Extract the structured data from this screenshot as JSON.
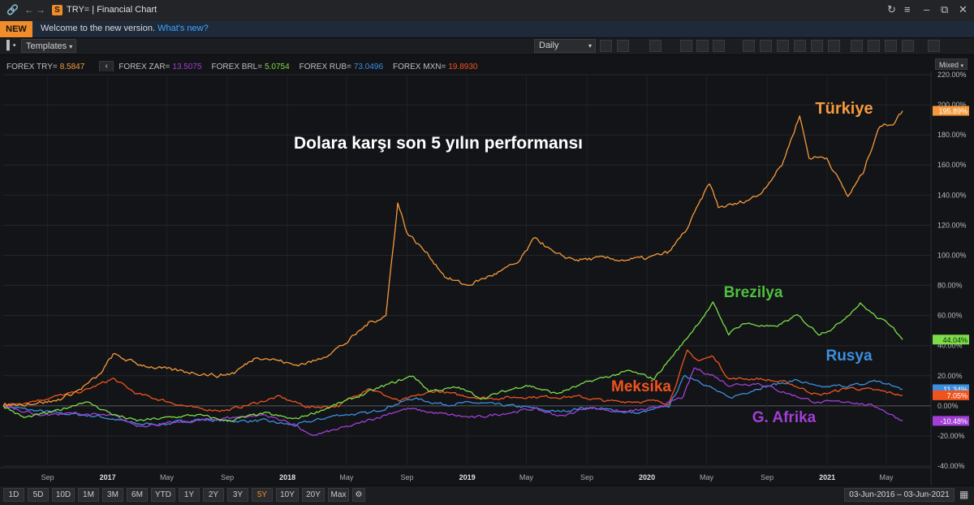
{
  "window": {
    "title": "TRY= | Financial Chart",
    "app_badge": "S"
  },
  "banner": {
    "tag": "NEW",
    "message": "Welcome to the new version.",
    "link": "What's new?"
  },
  "toolbar": {
    "templates_label": "Templates",
    "interval_label": "Daily"
  },
  "legend": [
    {
      "key": "FOREX TRY=",
      "value": "8.5847",
      "color": "#f59a3c"
    },
    {
      "key": "FOREX ZAR=",
      "value": "13.5075",
      "color": "#a23fd6"
    },
    {
      "key": "FOREX BRL=",
      "value": "5.0754",
      "color": "#7ddc4a"
    },
    {
      "key": "FOREX RUB=",
      "value": "73.0496",
      "color": "#3c8fe0"
    },
    {
      "key": "FOREX MXN=",
      "value": "19.8930",
      "color": "#f0541e"
    }
  ],
  "scale_mode": "Mixed",
  "range_buttons": [
    "1D",
    "5D",
    "10D",
    "1M",
    "3M",
    "6M",
    "YTD",
    "1Y",
    "2Y",
    "3Y",
    "5Y",
    "10Y",
    "20Y",
    "Max"
  ],
  "active_range": "5Y",
  "date_range": {
    "from": "03-Jun-2016",
    "to": "03-Jun-2021"
  },
  "chart_data": {
    "type": "line",
    "title": "Dolara karşı son 5 yılın performansı",
    "xlabel": "",
    "ylabel": "",
    "ylim": [
      -40,
      220
    ],
    "y_ticks": [
      "220.00%",
      "200.00%",
      "180.00%",
      "160.00%",
      "140.00%",
      "120.00%",
      "100.00%",
      "80.00%",
      "60.00%",
      "40.00%",
      "20.00%",
      "0.00%",
      "-20.00%",
      "-40.00%"
    ],
    "x_ticks": [
      "Sep",
      "2017",
      "May",
      "Sep",
      "2018",
      "May",
      "Sep",
      "2019",
      "May",
      "Sep",
      "2020",
      "May",
      "Sep",
      "2021",
      "May"
    ],
    "x_range": [
      "2016-06-03",
      "2021-06-03"
    ],
    "grid": true,
    "series": [
      {
        "name": "Türkiye",
        "color": "#f59a3c",
        "last_label": "195.89%",
        "points": [
          [
            "2016-06-03",
            0
          ],
          [
            "2016-08-01",
            2
          ],
          [
            "2016-09-15",
            3
          ],
          [
            "2016-11-01",
            10
          ],
          [
            "2016-12-15",
            20
          ],
          [
            "2017-01-12",
            34
          ],
          [
            "2017-03-01",
            28
          ],
          [
            "2017-05-01",
            24
          ],
          [
            "2017-07-01",
            22
          ],
          [
            "2017-08-15",
            20
          ],
          [
            "2017-09-15",
            22
          ],
          [
            "2017-11-01",
            33
          ],
          [
            "2017-12-15",
            30
          ],
          [
            "2018-01-15",
            27
          ],
          [
            "2018-03-01",
            30
          ],
          [
            "2018-05-01",
            42
          ],
          [
            "2018-06-15",
            55
          ],
          [
            "2018-07-20",
            60
          ],
          [
            "2018-08-13",
            135
          ],
          [
            "2018-09-01",
            115
          ],
          [
            "2018-10-15",
            100
          ],
          [
            "2018-11-20",
            85
          ],
          [
            "2019-01-01",
            80
          ],
          [
            "2019-03-01",
            88
          ],
          [
            "2019-04-15",
            95
          ],
          [
            "2019-05-20",
            112
          ],
          [
            "2019-07-01",
            100
          ],
          [
            "2019-08-15",
            97
          ],
          [
            "2019-10-01",
            98
          ],
          [
            "2019-11-15",
            97
          ],
          [
            "2020-01-01",
            98
          ],
          [
            "2020-02-15",
            102
          ],
          [
            "2020-03-23",
            118
          ],
          [
            "2020-05-07",
            148
          ],
          [
            "2020-05-25",
            132
          ],
          [
            "2020-07-01",
            134
          ],
          [
            "2020-08-15",
            140
          ],
          [
            "2020-10-01",
            160
          ],
          [
            "2020-11-06",
            193
          ],
          [
            "2020-11-25",
            165
          ],
          [
            "2020-12-31",
            165
          ],
          [
            "2021-02-12",
            139
          ],
          [
            "2021-03-15",
            155
          ],
          [
            "2021-04-15",
            185
          ],
          [
            "2021-05-15",
            188
          ],
          [
            "2021-06-03",
            196
          ]
        ]
      },
      {
        "name": "Brezilya",
        "color": "#7ddc4a",
        "last_label": "44.04%",
        "points": [
          [
            "2016-06-03",
            0
          ],
          [
            "2016-07-15",
            -8
          ],
          [
            "2016-09-15",
            -4
          ],
          [
            "2016-11-15",
            3
          ],
          [
            "2017-01-15",
            -6
          ],
          [
            "2017-03-01",
            -10
          ],
          [
            "2017-05-01",
            -8
          ],
          [
            "2017-07-01",
            -6
          ],
          [
            "2017-09-01",
            -10
          ],
          [
            "2017-11-15",
            -5
          ],
          [
            "2018-01-15",
            -9
          ],
          [
            "2018-03-01",
            -4
          ],
          [
            "2018-05-15",
            5
          ],
          [
            "2018-07-15",
            13
          ],
          [
            "2018-09-13",
            20
          ],
          [
            "2018-10-15",
            10
          ],
          [
            "2018-12-15",
            12
          ],
          [
            "2019-02-01",
            5
          ],
          [
            "2019-05-01",
            14
          ],
          [
            "2019-07-01",
            8
          ],
          [
            "2019-09-15",
            17
          ],
          [
            "2019-11-26",
            23
          ],
          [
            "2020-01-15",
            18
          ],
          [
            "2020-03-15",
            42
          ],
          [
            "2020-05-14",
            68
          ],
          [
            "2020-06-15",
            48
          ],
          [
            "2020-07-15",
            55
          ],
          [
            "2020-09-15",
            52
          ],
          [
            "2020-11-01",
            60
          ],
          [
            "2020-12-15",
            48
          ],
          [
            "2021-01-15",
            52
          ],
          [
            "2021-03-09",
            68
          ],
          [
            "2021-04-15",
            58
          ],
          [
            "2021-05-15",
            53
          ],
          [
            "2021-06-03",
            44
          ]
        ]
      },
      {
        "name": "Rusya",
        "color": "#3c8fe0",
        "last_label": "11.34%",
        "points": [
          [
            "2016-06-03",
            0
          ],
          [
            "2016-08-01",
            -3
          ],
          [
            "2016-10-01",
            -5
          ],
          [
            "2016-12-15",
            -7
          ],
          [
            "2017-03-01",
            -12
          ],
          [
            "2017-05-01",
            -12
          ],
          [
            "2017-07-01",
            -9
          ],
          [
            "2017-09-01",
            -10
          ],
          [
            "2017-11-15",
            -10
          ],
          [
            "2018-01-15",
            -13
          ],
          [
            "2018-04-15",
            -6
          ],
          [
            "2018-06-15",
            -5
          ],
          [
            "2018-09-13",
            5
          ],
          [
            "2018-11-15",
            1
          ],
          [
            "2019-01-15",
            2
          ],
          [
            "2019-05-01",
            -1
          ],
          [
            "2019-07-01",
            -4
          ],
          [
            "2019-09-01",
            -1
          ],
          [
            "2019-12-15",
            -5
          ],
          [
            "2020-02-15",
            0
          ],
          [
            "2020-03-18",
            20
          ],
          [
            "2020-04-15",
            17
          ],
          [
            "2020-06-15",
            5
          ],
          [
            "2020-08-15",
            12
          ],
          [
            "2020-09-30",
            15
          ],
          [
            "2020-11-01",
            17
          ],
          [
            "2020-12-15",
            12
          ],
          [
            "2021-01-15",
            13
          ],
          [
            "2021-03-15",
            14
          ],
          [
            "2021-04-07",
            17
          ],
          [
            "2021-06-03",
            11
          ]
        ]
      },
      {
        "name": "Meksika",
        "color": "#f0541e",
        "last_label": "7.05%",
        "points": [
          [
            "2016-06-03",
            0
          ],
          [
            "2016-08-15",
            4
          ],
          [
            "2016-11-15",
            10
          ],
          [
            "2017-01-12",
            18
          ],
          [
            "2017-03-01",
            8
          ],
          [
            "2017-05-01",
            3
          ],
          [
            "2017-07-01",
            -2
          ],
          [
            "2017-09-01",
            -3
          ],
          [
            "2017-12-15",
            6
          ],
          [
            "2018-02-15",
            -1
          ],
          [
            "2018-04-15",
            0
          ],
          [
            "2018-06-14",
            12
          ],
          [
            "2018-08-15",
            3
          ],
          [
            "2018-10-30",
            10
          ],
          [
            "2018-12-15",
            7
          ],
          [
            "2019-02-15",
            5
          ],
          [
            "2019-05-01",
            6
          ],
          [
            "2019-08-15",
            6
          ],
          [
            "2019-10-15",
            3
          ],
          [
            "2020-01-15",
            3
          ],
          [
            "2020-02-15",
            2
          ],
          [
            "2020-03-23",
            36
          ],
          [
            "2020-04-15",
            30
          ],
          [
            "2020-05-15",
            33
          ],
          [
            "2020-06-15",
            18
          ],
          [
            "2020-08-15",
            18
          ],
          [
            "2020-10-15",
            15
          ],
          [
            "2020-12-15",
            7
          ],
          [
            "2021-02-15",
            12
          ],
          [
            "2021-04-15",
            10
          ],
          [
            "2021-06-03",
            7
          ]
        ]
      },
      {
        "name": "G. Afrika",
        "color": "#a23fd6",
        "last_label": "-10.48%",
        "points": [
          [
            "2016-06-03",
            0
          ],
          [
            "2016-08-15",
            -6
          ],
          [
            "2016-11-01",
            -5
          ],
          [
            "2017-01-15",
            -7
          ],
          [
            "2017-03-01",
            -13
          ],
          [
            "2017-05-01",
            -12
          ],
          [
            "2017-07-01",
            -10
          ],
          [
            "2017-09-01",
            -8
          ],
          [
            "2017-11-15",
            -6
          ],
          [
            "2018-01-15",
            -12
          ],
          [
            "2018-02-15",
            -20
          ],
          [
            "2018-03-15",
            -18
          ],
          [
            "2018-05-15",
            -13
          ],
          [
            "2018-08-15",
            -3
          ],
          [
            "2018-09-05",
            -2
          ],
          [
            "2018-11-01",
            -5
          ],
          [
            "2019-01-15",
            -8
          ],
          [
            "2019-03-15",
            -5
          ],
          [
            "2019-05-15",
            -2
          ],
          [
            "2019-07-15",
            -7
          ],
          [
            "2019-09-01",
            -1
          ],
          [
            "2019-11-15",
            -4
          ],
          [
            "2020-01-15",
            -2
          ],
          [
            "2020-03-15",
            6
          ],
          [
            "2020-04-06",
            25
          ],
          [
            "2020-05-15",
            20
          ],
          [
            "2020-06-15",
            14
          ],
          [
            "2020-08-15",
            15
          ],
          [
            "2020-10-15",
            8
          ],
          [
            "2020-12-15",
            2
          ],
          [
            "2021-02-15",
            3
          ],
          [
            "2021-04-15",
            -1
          ],
          [
            "2021-06-03",
            -10
          ]
        ]
      }
    ],
    "annotations": [
      {
        "text": "Türkiye",
        "color": "#f59a3c"
      },
      {
        "text": "Brezilya",
        "color": "#4fbf3f"
      },
      {
        "text": "Rusya",
        "color": "#3c8fe0"
      },
      {
        "text": "Meksika",
        "color": "#f0541e"
      },
      {
        "text": "G. Afrika",
        "color": "#a23fd6"
      }
    ]
  }
}
